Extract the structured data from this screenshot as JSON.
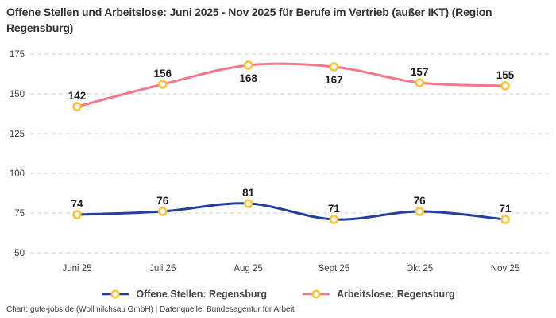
{
  "title": "Offene Stellen und Arbeitslose: Juni 2025 - Nov 2025 für Berufe im Vertrieb (außer IKT) (Region Regensburg)",
  "footer": {
    "credit": "Chart: gute-jobs.de (Wollmilchsau GmbH) | Datenquelle: Bundesagentur für Arbeit"
  },
  "chart_data": {
    "type": "line",
    "title": "Offene Stellen und Arbeitslose: Juni 2025 - Nov 2025 für Berufe im Vertrieb (außer IKT) (Region Regensburg)",
    "categories": [
      "Juni 25",
      "Juli 25",
      "Aug 25",
      "Sept 25",
      "Okt 25",
      "Nov 25"
    ],
    "series": [
      {
        "name": "Offene Stellen: Regensburg",
        "values": [
          74,
          76,
          81,
          71,
          76,
          71
        ],
        "color": "#2340a0",
        "label_positions": [
          "top",
          "top",
          "top",
          "top",
          "top",
          "top"
        ]
      },
      {
        "name": "Arbeitslose: Regensburg",
        "values": [
          142,
          156,
          168,
          167,
          157,
          155
        ],
        "color": "#f9758c",
        "label_positions": [
          "top",
          "top",
          "bottom",
          "bottom",
          "top",
          "top"
        ]
      }
    ],
    "marker": {
      "fill": "#ffffff",
      "stroke": "#fcc332"
    },
    "yticks": [
      50,
      75,
      100,
      125,
      150,
      175
    ],
    "ylim": [
      50,
      175
    ],
    "xlabel": "",
    "ylabel": "",
    "grid": "dashed-horizontal",
    "legend_position": "bottom",
    "colors": {
      "gridline": "#cfcfcf",
      "tick_text": "#3d3d3d",
      "data_label": "#1f1f1f",
      "title_text": "#333333"
    }
  }
}
